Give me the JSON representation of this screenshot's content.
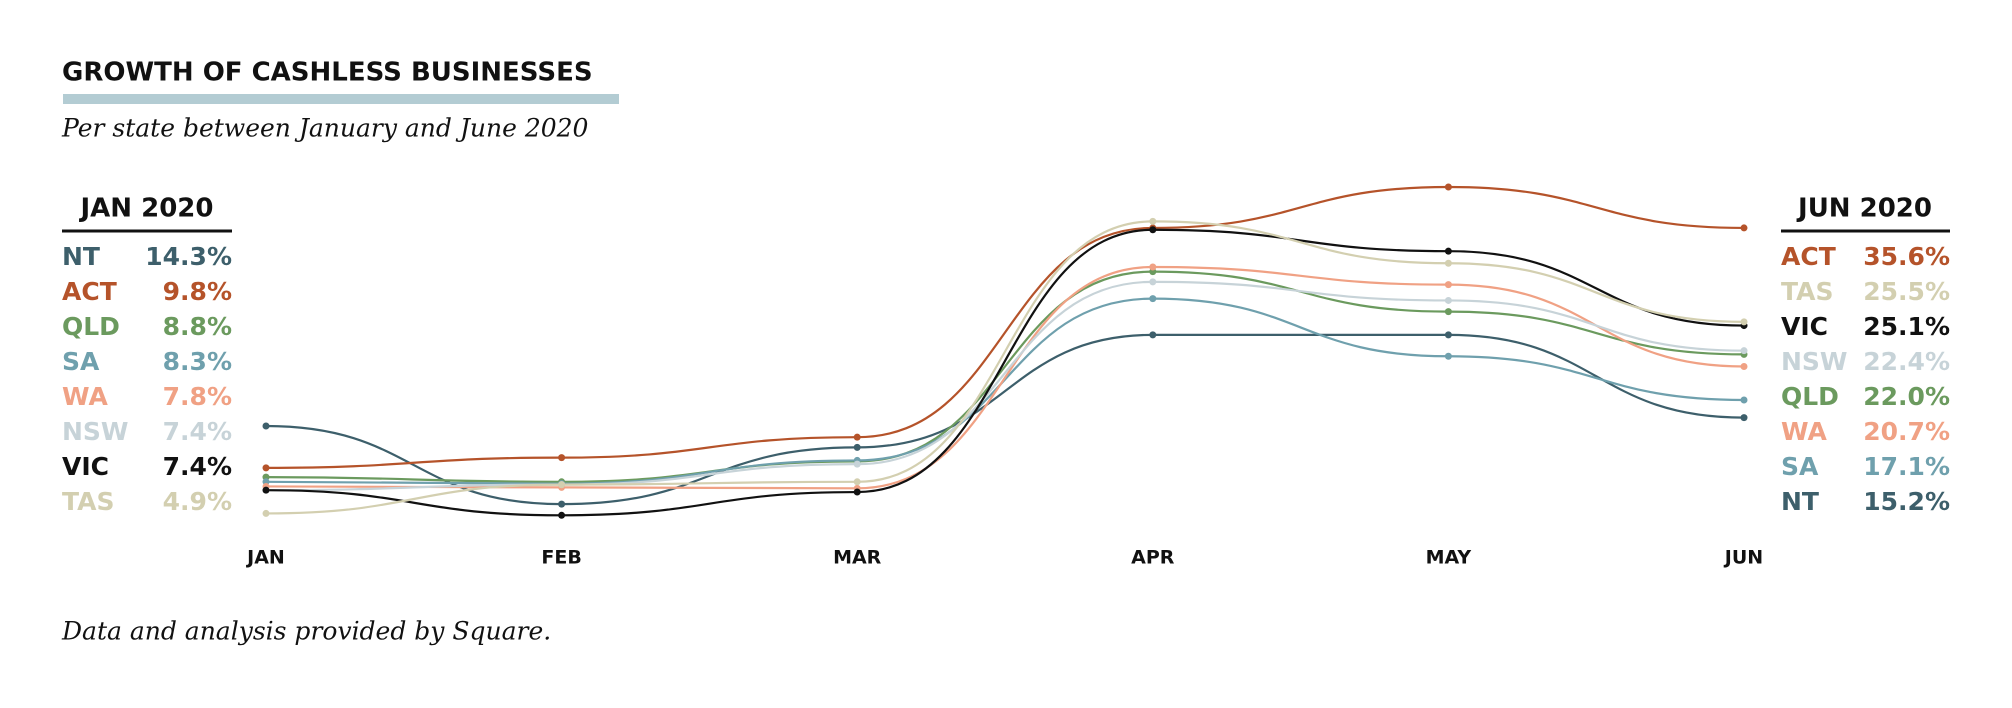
{
  "chart_data": {
    "type": "line",
    "title": "GROWTH OF CASHLESS BUSINESSES",
    "subtitle": "Per state between January and June 2020",
    "start_label": "JAN 2020",
    "end_label": "JUN 2020",
    "footnote": "Data and analysis provided by Square.",
    "categories": [
      "JAN",
      "FEB",
      "MAR",
      "APR",
      "MAY",
      "JUN"
    ],
    "ylim": [
      0,
      40
    ],
    "series": [
      {
        "name": "NT",
        "color": "#3d5f6b",
        "values": [
          14.3,
          5.9,
          12.0,
          24.1,
          24.1,
          15.2
        ],
        "value_labels": [
          "14.3%",
          null,
          null,
          null,
          null,
          "15.2%"
        ]
      },
      {
        "name": "ACT",
        "color": "#b5532a",
        "values": [
          9.8,
          10.9,
          13.1,
          35.6,
          40.0,
          35.6
        ],
        "value_labels": [
          "9.8%",
          null,
          null,
          null,
          null,
          "35.6%"
        ]
      },
      {
        "name": "QLD",
        "color": "#6b9a5e",
        "values": [
          8.8,
          8.3,
          10.5,
          30.9,
          26.6,
          22.0
        ],
        "value_labels": [
          "8.8%",
          null,
          null,
          null,
          null,
          "22.0%"
        ]
      },
      {
        "name": "SA",
        "color": "#6fa0ad",
        "values": [
          8.3,
          8.1,
          10.6,
          28.0,
          21.8,
          17.1
        ],
        "value_labels": [
          "8.3%",
          null,
          null,
          null,
          null,
          "17.1%"
        ]
      },
      {
        "name": "WA",
        "color": "#f0a184",
        "values": [
          7.8,
          7.7,
          7.6,
          31.4,
          29.5,
          20.7
        ],
        "value_labels": [
          "7.8%",
          null,
          null,
          null,
          null,
          "20.7%"
        ]
      },
      {
        "name": "NSW",
        "color": "#c7d3d8",
        "values": [
          7.4,
          8.0,
          10.2,
          29.8,
          27.8,
          22.4
        ],
        "value_labels": [
          "7.4%",
          null,
          null,
          null,
          null,
          "22.4%"
        ]
      },
      {
        "name": "VIC",
        "color": "#111111",
        "values": [
          7.4,
          4.7,
          7.2,
          35.4,
          33.1,
          25.1
        ],
        "value_labels": [
          "7.4%",
          null,
          null,
          null,
          null,
          "25.1%"
        ]
      },
      {
        "name": "TAS",
        "color": "#d3cfb0",
        "values": [
          4.9,
          8.0,
          8.3,
          36.3,
          31.8,
          25.5
        ],
        "value_labels": [
          "4.9%",
          null,
          null,
          null,
          null,
          "25.5%"
        ]
      }
    ]
  }
}
